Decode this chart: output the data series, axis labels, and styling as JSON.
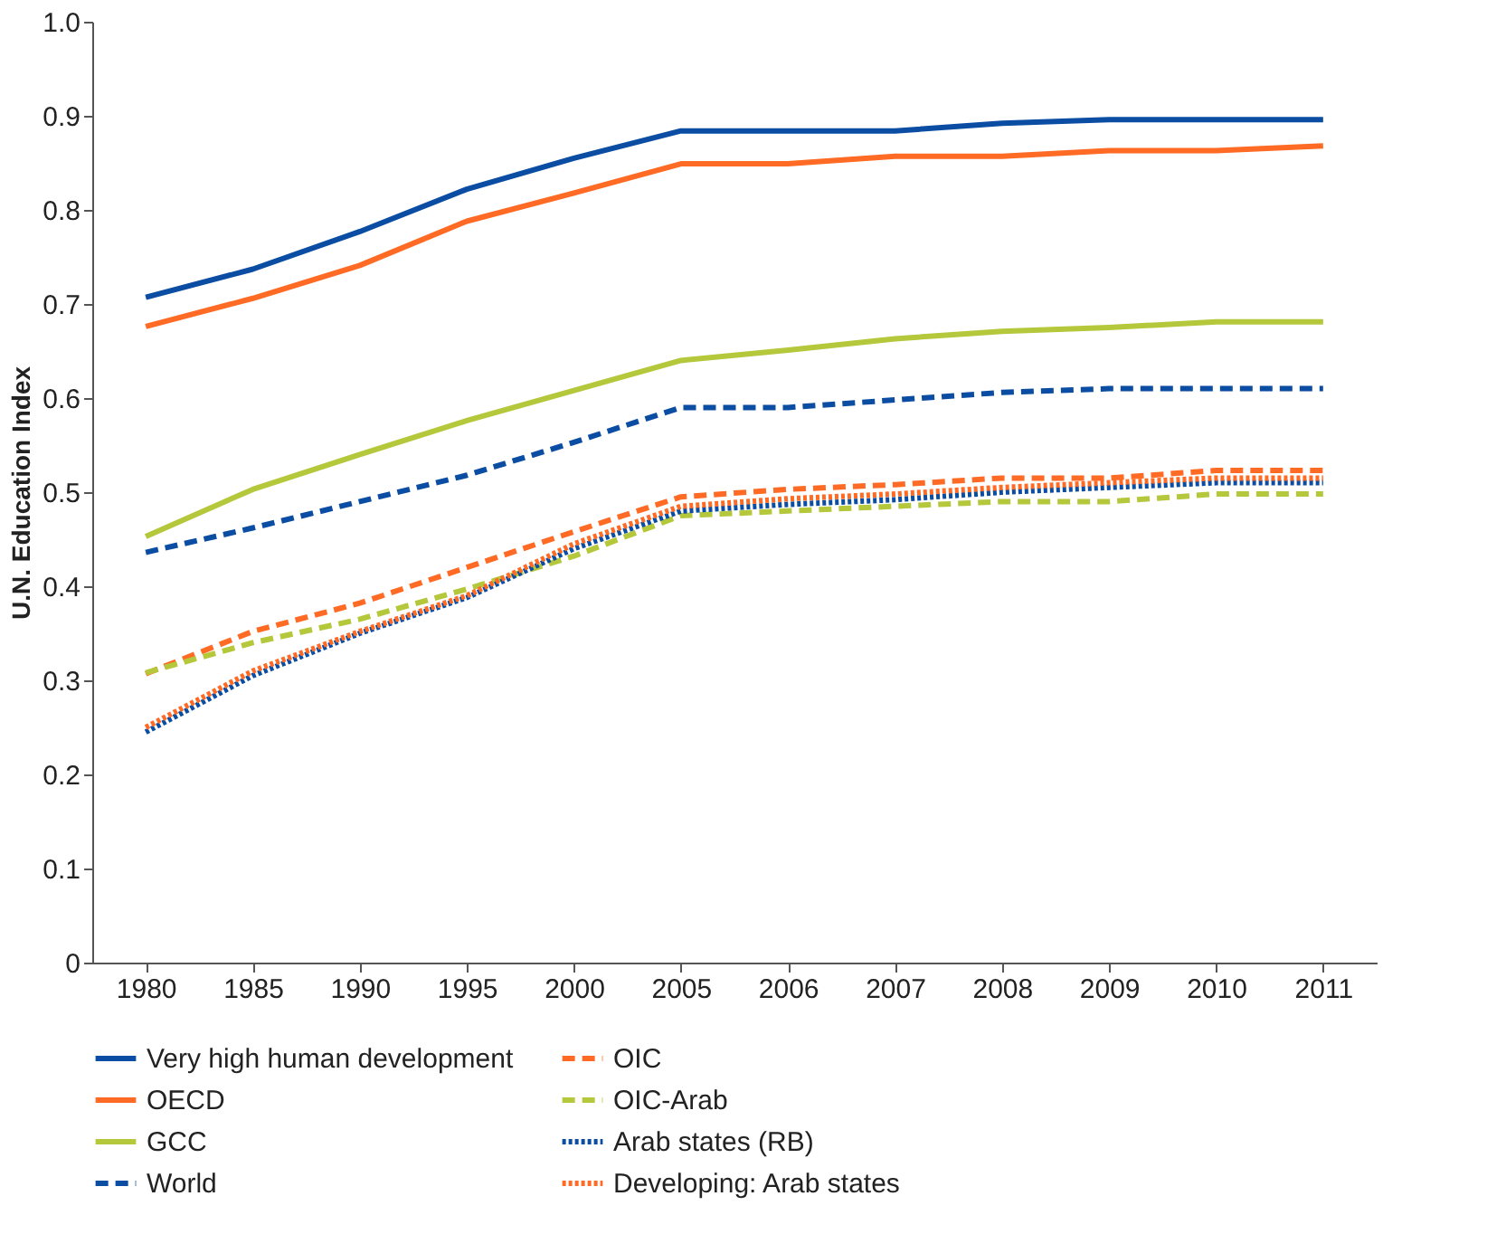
{
  "chart_data": {
    "type": "line",
    "ylabel": "U.N. Education Index",
    "categories": [
      "1980",
      "1985",
      "1990",
      "1995",
      "2000",
      "2005",
      "2006",
      "2007",
      "2008",
      "2009",
      "2010",
      "2011"
    ],
    "ylim": [
      0,
      1.0
    ],
    "yticks": [
      {
        "value": 0,
        "label": "0"
      },
      0.1,
      0.2,
      0.3,
      0.4,
      0.5,
      0.6,
      0.7,
      0.8,
      0.9,
      {
        "value": 1.0,
        "label": "1.0"
      }
    ],
    "grid": false,
    "legend": "bottom",
    "marker": "none",
    "series": [
      {
        "name": "Very high human development",
        "color": "#0a4da2",
        "line_style": "solid",
        "values": [
          0.707,
          0.737,
          0.777,
          0.822,
          0.855,
          0.884,
          0.884,
          0.884,
          0.892,
          0.896,
          0.896,
          0.896
        ]
      },
      {
        "name": "OECD",
        "color": "#ff6a25",
        "line_style": "solid",
        "values": [
          0.676,
          0.706,
          0.741,
          0.788,
          0.818,
          0.849,
          0.849,
          0.857,
          0.857,
          0.863,
          0.863,
          0.868
        ]
      },
      {
        "name": "GCC",
        "color": "#b5c73a",
        "line_style": "solid",
        "values": [
          0.453,
          0.503,
          0.54,
          0.576,
          0.608,
          0.64,
          0.651,
          0.663,
          0.671,
          0.675,
          0.681,
          0.681
        ]
      },
      {
        "name": "World",
        "color": "#0a4da2",
        "line_style": "dashed",
        "values": [
          0.436,
          0.462,
          0.49,
          0.518,
          0.553,
          0.59,
          0.59,
          0.598,
          0.606,
          0.61,
          0.61,
          0.61
        ]
      },
      {
        "name": "OIC",
        "color": "#ff6a25",
        "line_style": "dashed",
        "values": [
          0.307,
          0.352,
          0.382,
          0.42,
          0.458,
          0.495,
          0.503,
          0.508,
          0.515,
          0.515,
          0.523,
          0.523
        ]
      },
      {
        "name": "OIC-Arab",
        "color": "#b5c73a",
        "line_style": "dashed",
        "values": [
          0.308,
          0.34,
          0.365,
          0.397,
          0.432,
          0.475,
          0.48,
          0.485,
          0.49,
          0.49,
          0.498,
          0.498
        ]
      },
      {
        "name": "Arab states (RB)",
        "color": "#0a4da2",
        "line_style": "dotted",
        "values": [
          0.245,
          0.305,
          0.35,
          0.388,
          0.44,
          0.48,
          0.487,
          0.492,
          0.5,
          0.505,
          0.51,
          0.51
        ]
      },
      {
        "name": "Developing: Arab states",
        "color": "#ff6a25",
        "line_style": "dotted",
        "values": [
          0.25,
          0.31,
          0.352,
          0.39,
          0.445,
          0.485,
          0.493,
          0.498,
          0.505,
          0.51,
          0.515,
          0.515
        ]
      }
    ]
  }
}
